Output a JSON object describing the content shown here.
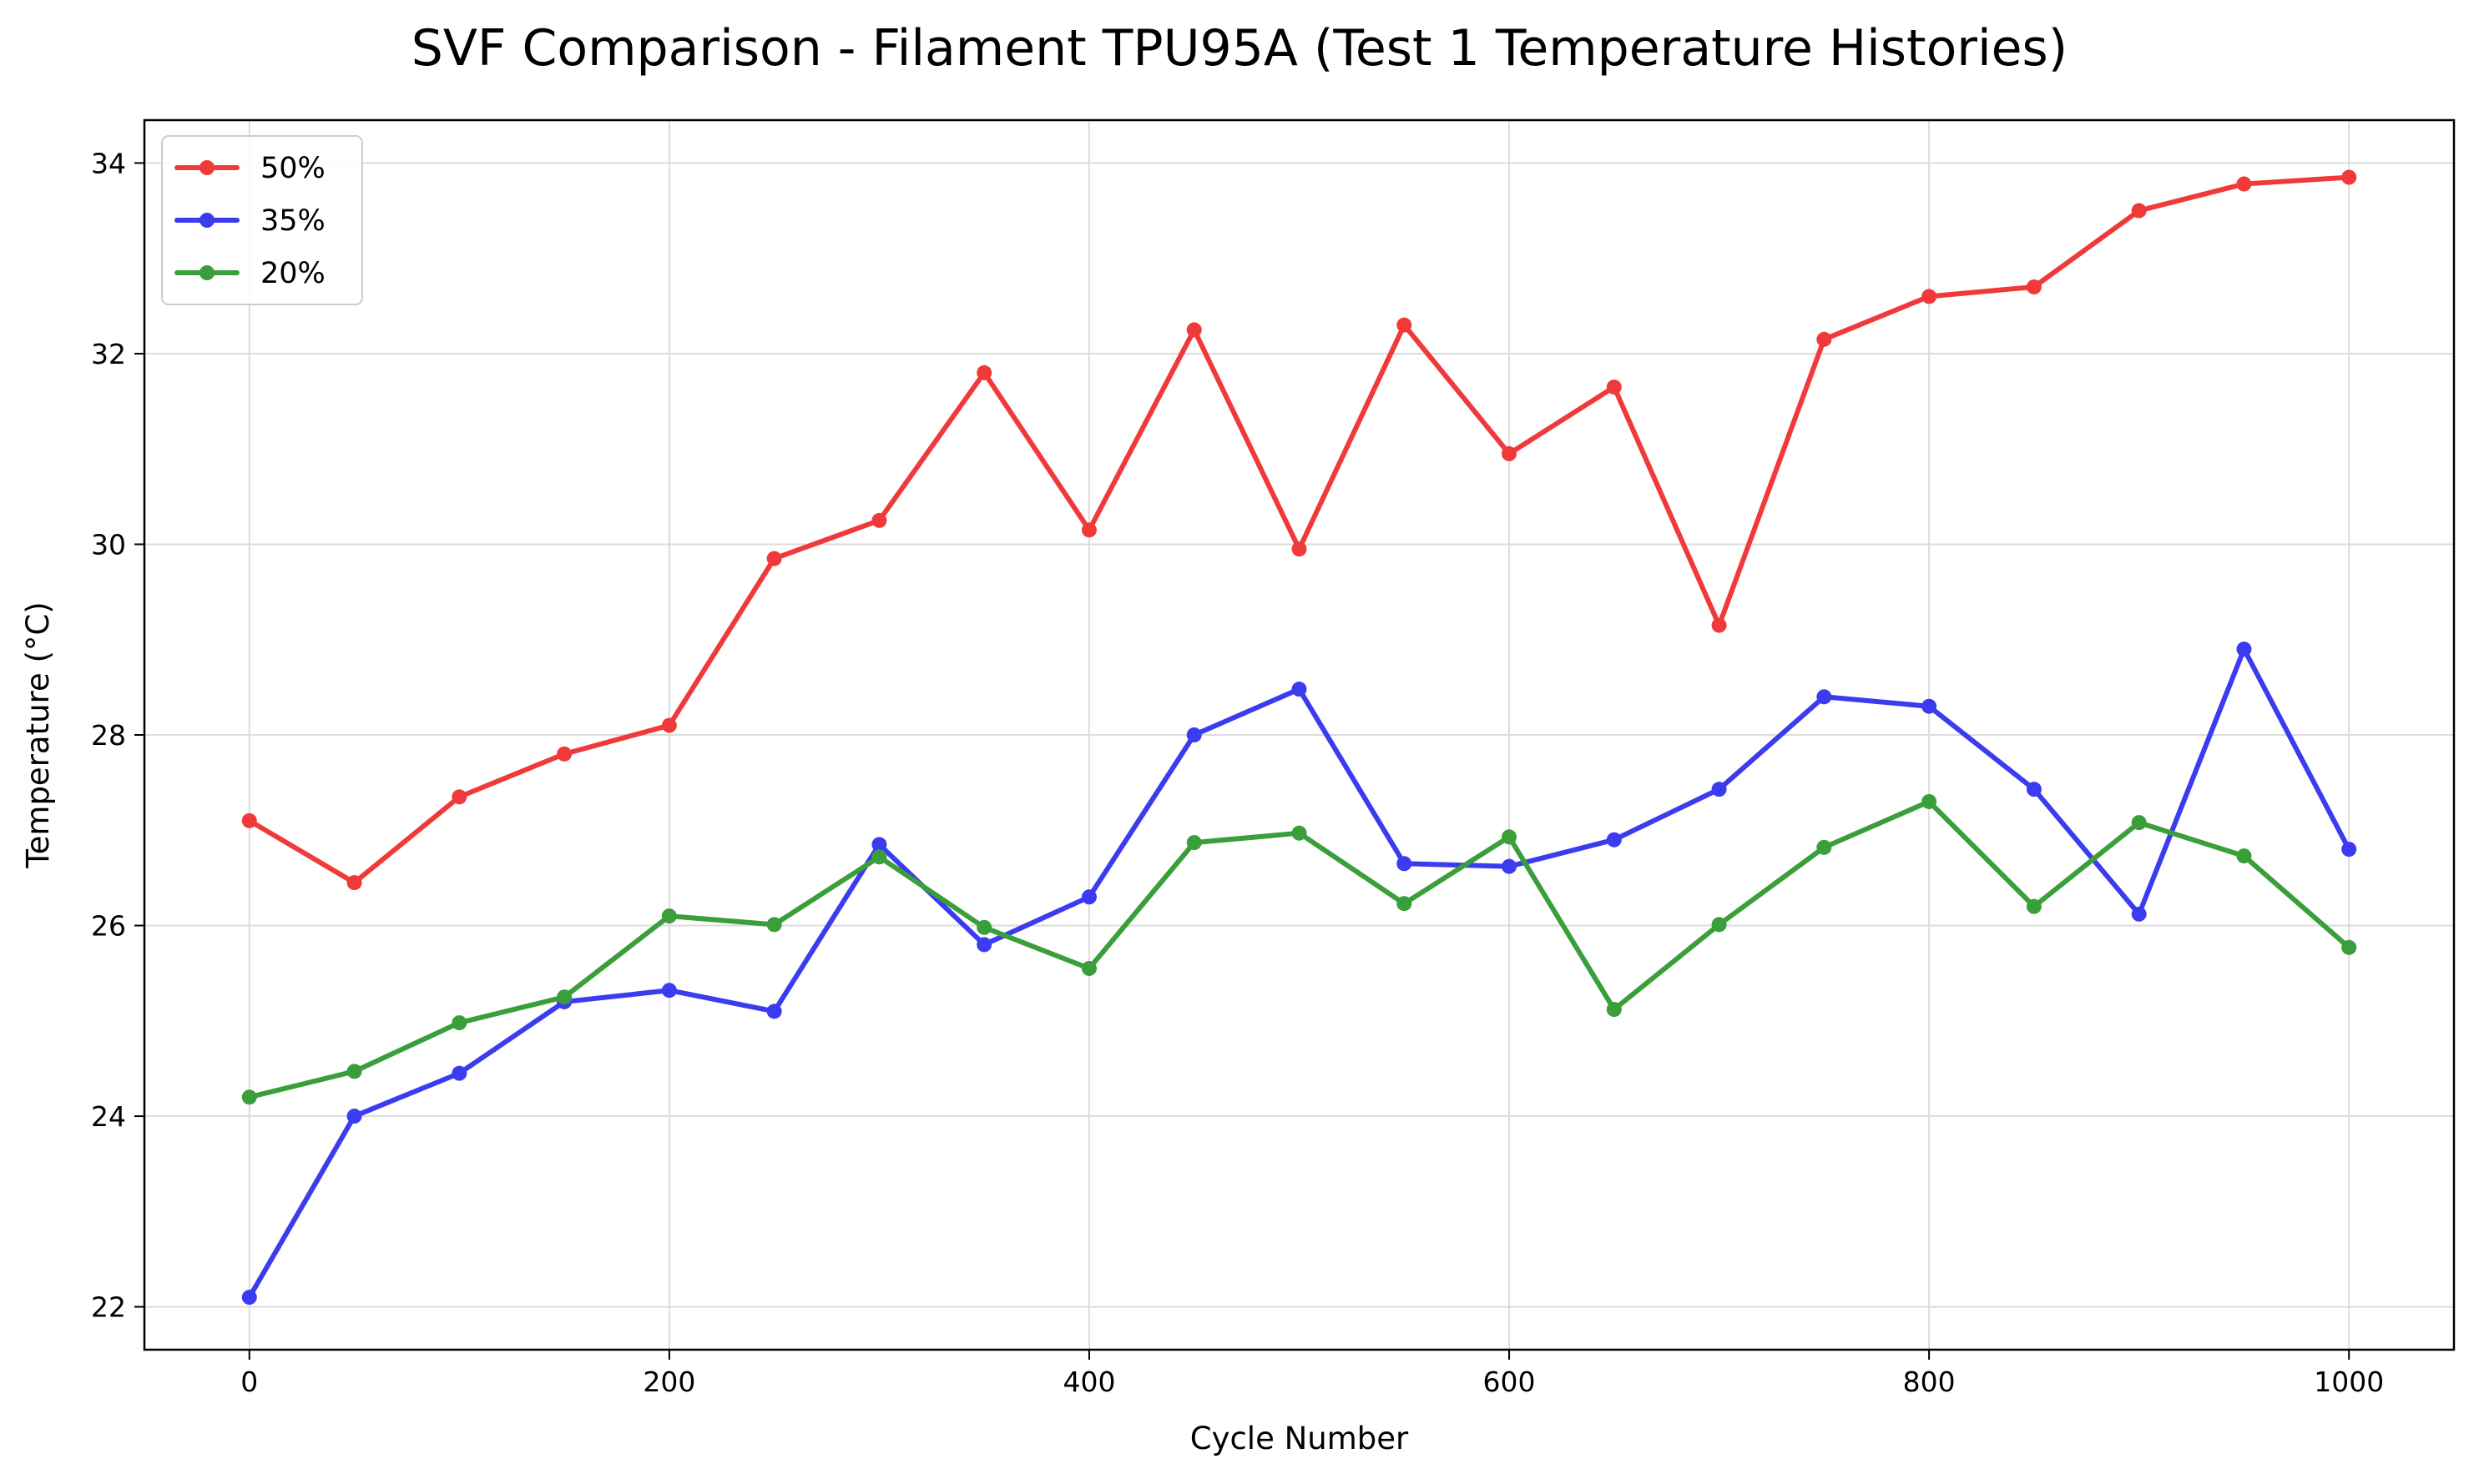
{
  "chart_data": {
    "type": "line",
    "title": "SVF Comparison - Filament TPU95A (Test 1 Temperature Histories)",
    "xlabel": "Cycle Number",
    "ylabel": "Temperature (°C)",
    "xlim": [
      -50,
      1050
    ],
    "ylim": [
      21.55,
      34.45
    ],
    "xticks": [
      0,
      200,
      400,
      600,
      800,
      1000
    ],
    "yticks": [
      22,
      24,
      26,
      28,
      30,
      32,
      34
    ],
    "grid": true,
    "legend_position": "top-left",
    "x": [
      0,
      50,
      100,
      150,
      200,
      250,
      300,
      350,
      400,
      450,
      500,
      550,
      600,
      650,
      700,
      750,
      800,
      850,
      900,
      950,
      1000
    ],
    "series": [
      {
        "name": "50%",
        "color": "#f03a3a",
        "values": [
          27.1,
          26.45,
          27.35,
          27.8,
          28.1,
          29.85,
          30.25,
          31.8,
          30.15,
          32.25,
          29.95,
          32.3,
          30.95,
          31.65,
          29.15,
          32.15,
          32.6,
          32.7,
          33.5,
          33.78,
          33.85
        ]
      },
      {
        "name": "35%",
        "color": "#3b3bf0",
        "values": [
          22.1,
          24.0,
          24.45,
          25.2,
          25.32,
          25.1,
          26.85,
          25.8,
          26.3,
          28.0,
          28.48,
          26.65,
          26.62,
          26.9,
          27.43,
          28.4,
          28.3,
          27.43,
          26.12,
          28.9,
          26.8
        ]
      },
      {
        "name": "20%",
        "color": "#3a9e3a",
        "values": [
          24.2,
          24.47,
          24.98,
          25.25,
          26.1,
          26.01,
          26.72,
          25.98,
          25.55,
          26.87,
          26.97,
          26.23,
          26.93,
          25.12,
          26.01,
          26.82,
          27.3,
          26.2,
          27.08,
          26.73,
          25.77
        ]
      }
    ]
  }
}
